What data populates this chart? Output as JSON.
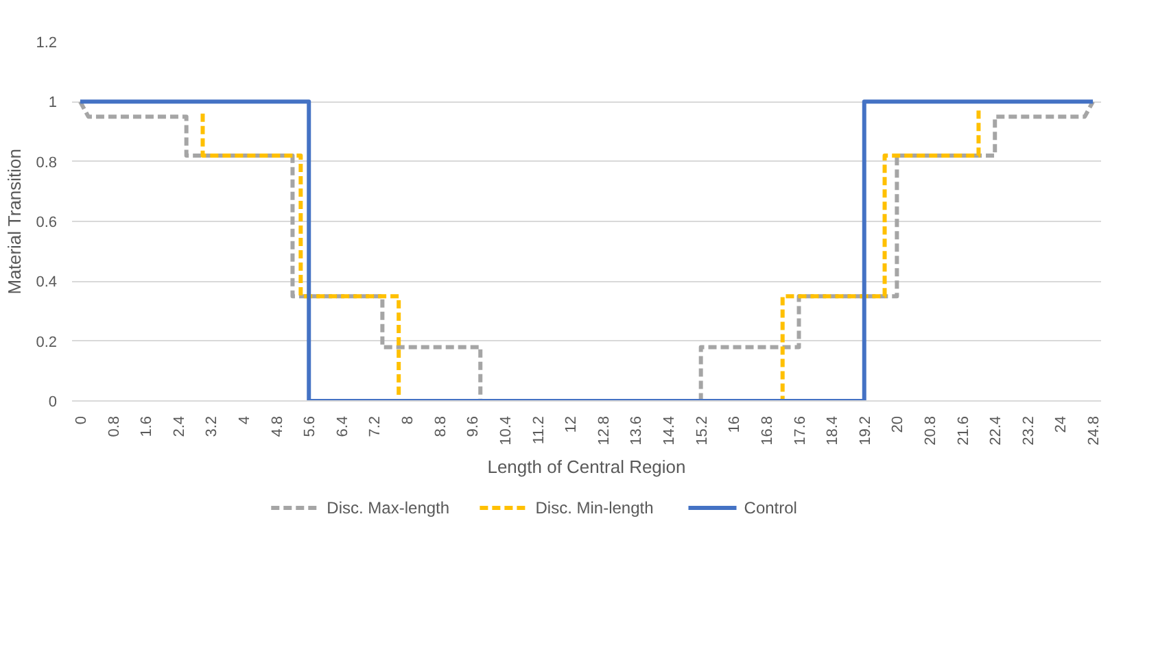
{
  "chart_data": {
    "type": "line",
    "xlabel": "Length of Central Region",
    "ylabel": "Material Transition",
    "xlim": [
      -0.2,
      25.0
    ],
    "ylim": [
      0,
      1.2
    ],
    "xticks": [
      0,
      0.8,
      1.6,
      2.4,
      3.2,
      4,
      4.8,
      5.6,
      6.4,
      7.2,
      8,
      8.8,
      9.6,
      10.4,
      11.2,
      12,
      12.8,
      13.6,
      14.4,
      15.2,
      16,
      16.8,
      17.6,
      18.4,
      19.2,
      20,
      20.8,
      21.6,
      22.4,
      23.2,
      24,
      24.8
    ],
    "yticks": [
      0,
      0.2,
      0.4,
      0.6,
      0.8,
      1,
      1.2
    ],
    "grid": "y",
    "legend": "bottom",
    "series": [
      {
        "name": "Disc. Max-length",
        "color": "#a5a5a5",
        "line_style": "dashed",
        "x": [
          0,
          0.2,
          2.6,
          2.6,
          5.2,
          5.2,
          7.4,
          7.4,
          9.8,
          9.8,
          15.2,
          15.2,
          17.6,
          17.6,
          20.0,
          20.0,
          22.4,
          22.4,
          24.6,
          24.8
        ],
        "values": [
          1,
          0.95,
          0.95,
          0.82,
          0.82,
          0.35,
          0.35,
          0.18,
          0.18,
          0,
          0,
          0.18,
          0.18,
          0.35,
          0.35,
          0.82,
          0.82,
          0.95,
          0.95,
          1
        ]
      },
      {
        "name": "Disc. Min-length",
        "color": "#ffc000",
        "line_style": "dashed",
        "x": [
          3.0,
          3.0,
          5.4,
          5.4,
          7.8,
          7.8,
          17.2,
          17.2,
          19.7,
          19.7,
          22.0,
          22.0
        ],
        "values": [
          0.96,
          0.82,
          0.82,
          0.35,
          0.35,
          0,
          0,
          0.35,
          0.35,
          0.82,
          0.82,
          0.98
        ]
      },
      {
        "name": "Control",
        "color": "#4472c4",
        "line_style": "solid",
        "x": [
          0,
          5.6,
          5.6,
          19.2,
          19.2,
          24.8
        ],
        "values": [
          1,
          1,
          0,
          0,
          1,
          1
        ]
      }
    ]
  }
}
